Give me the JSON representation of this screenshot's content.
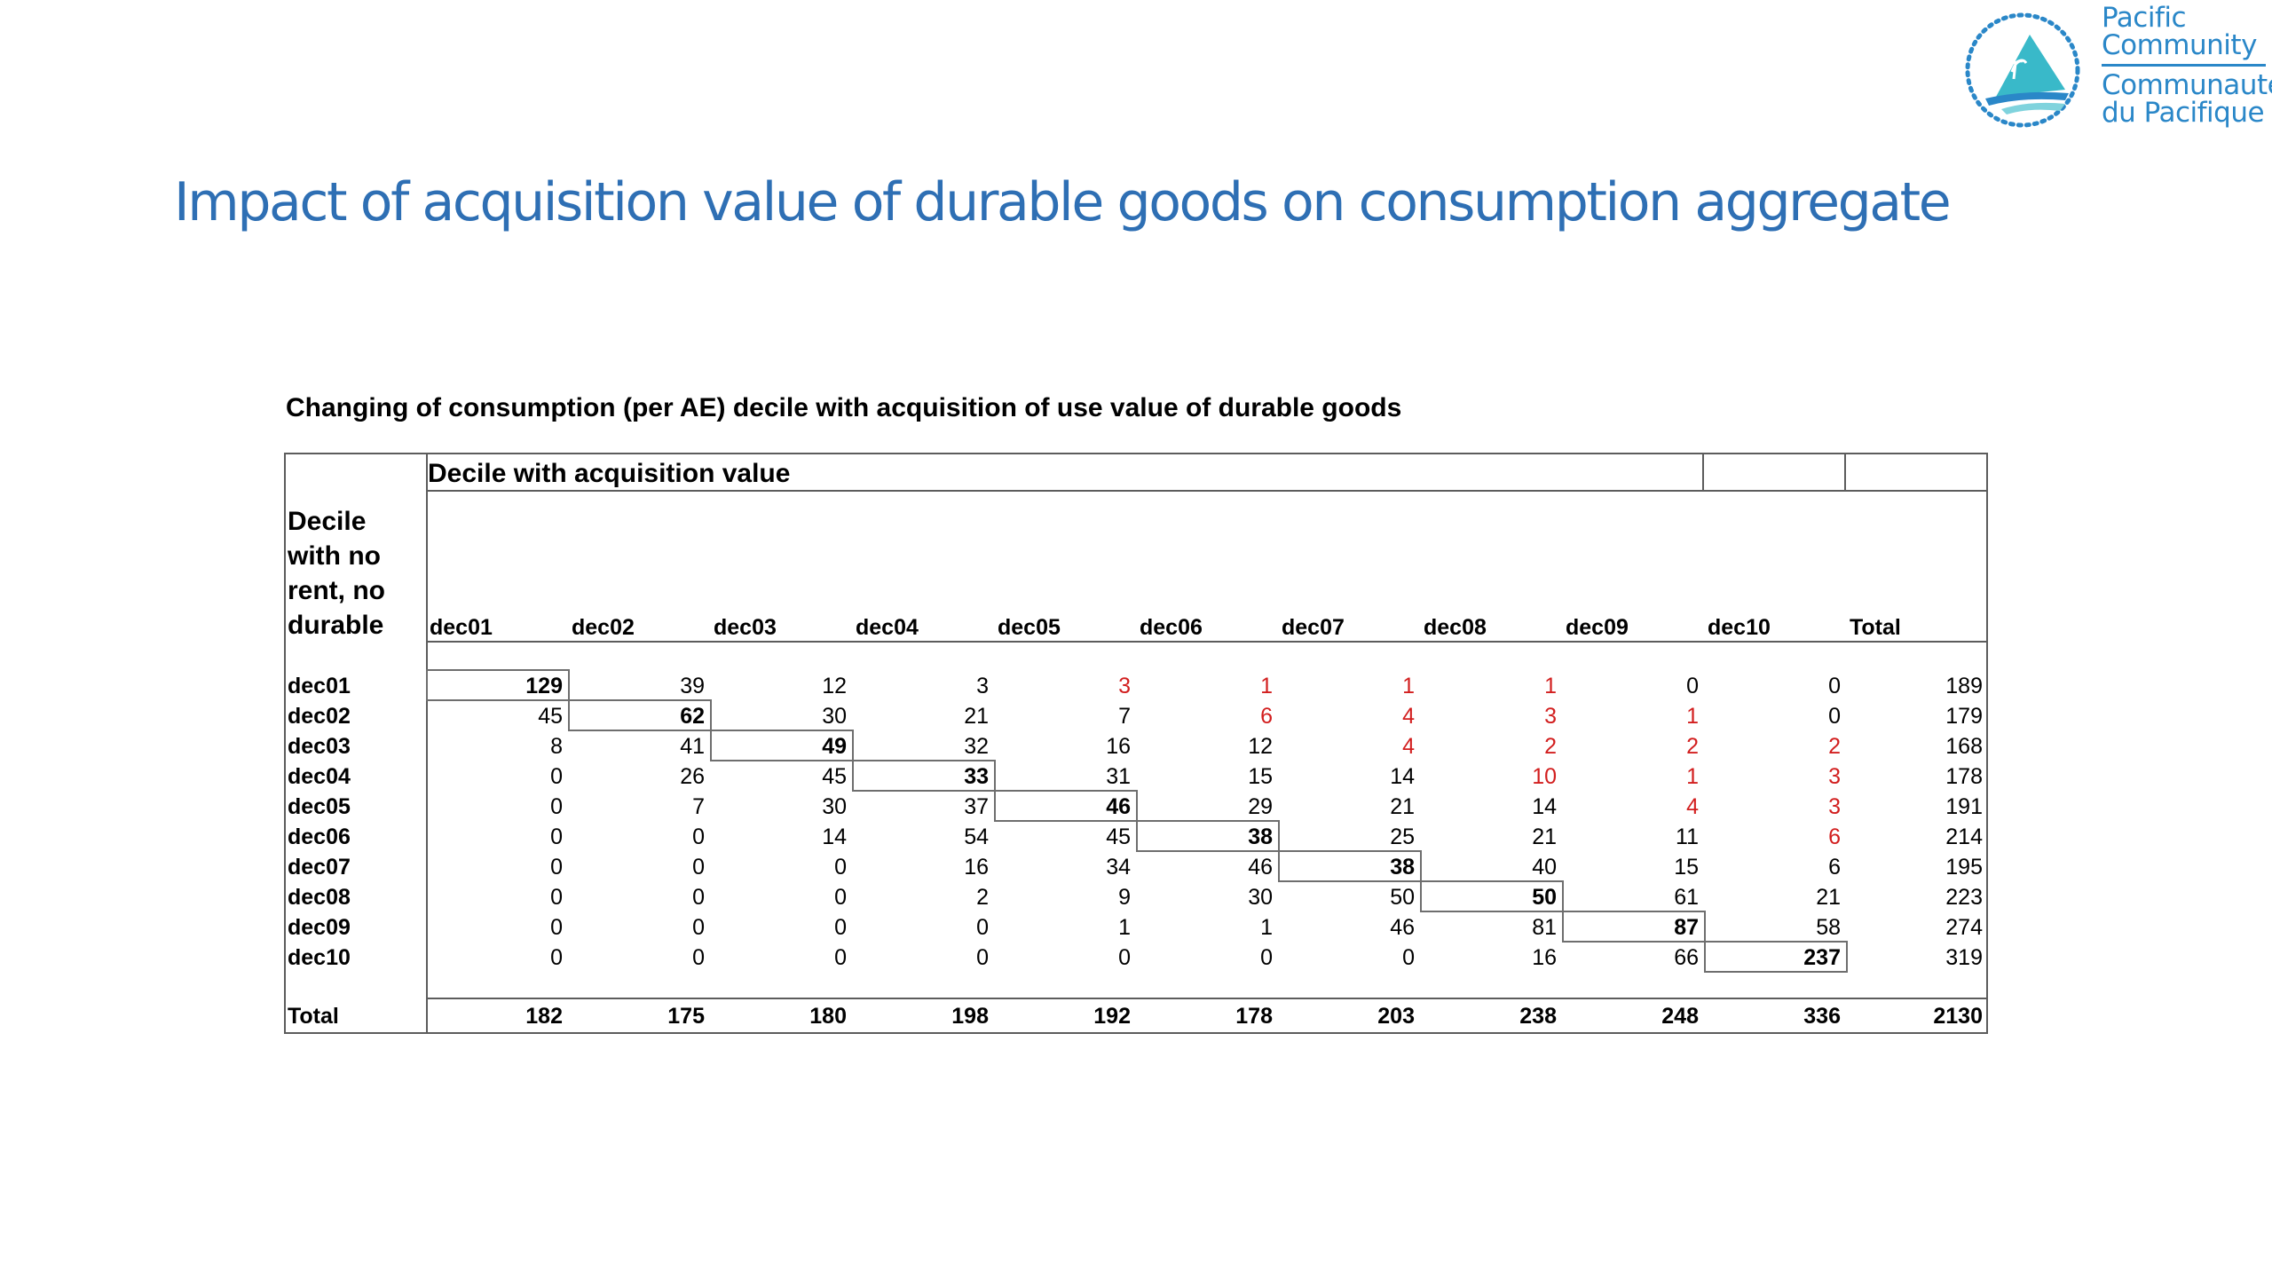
{
  "logo": {
    "line1": "Pacific",
    "line2": "Community",
    "line3": "Communauté",
    "line4": "du Pacifique",
    "brand_color": "#2a87c8"
  },
  "title": "Impact of acquisition value of durable goods on consumption aggregate",
  "title_color": "#2e6fb4",
  "table": {
    "caption": "Changing of consumption (per AE) decile with acquisition of use value of durable goods",
    "group_header": "Decile with acquisition value",
    "row_header": "Decile\nwith no\nrent, no\ndurable",
    "columns": [
      "dec01",
      "dec02",
      "dec03",
      "dec04",
      "dec05",
      "dec06",
      "dec07",
      "dec08",
      "dec09",
      "dec10",
      "Total"
    ],
    "rows": [
      {
        "label": "dec01",
        "values": [
          "129",
          "39",
          "12",
          "3",
          "3",
          "1",
          "1",
          "1",
          "0",
          "0",
          "189"
        ]
      },
      {
        "label": "dec02",
        "values": [
          "45",
          "62",
          "30",
          "21",
          "7",
          "6",
          "4",
          "3",
          "1",
          "0",
          "179"
        ]
      },
      {
        "label": "dec03",
        "values": [
          "8",
          "41",
          "49",
          "32",
          "16",
          "12",
          "4",
          "2",
          "2",
          "2",
          "168"
        ]
      },
      {
        "label": "dec04",
        "values": [
          "0",
          "26",
          "45",
          "33",
          "31",
          "15",
          "14",
          "10",
          "1",
          "3",
          "178"
        ]
      },
      {
        "label": "dec05",
        "values": [
          "0",
          "7",
          "30",
          "37",
          "46",
          "29",
          "21",
          "14",
          "4",
          "3",
          "191"
        ]
      },
      {
        "label": "dec06",
        "values": [
          "0",
          "0",
          "14",
          "54",
          "45",
          "38",
          "25",
          "21",
          "11",
          "6",
          "214"
        ]
      },
      {
        "label": "dec07",
        "values": [
          "0",
          "0",
          "0",
          "16",
          "34",
          "46",
          "38",
          "40",
          "15",
          "6",
          "195"
        ]
      },
      {
        "label": "dec08",
        "values": [
          "0",
          "0",
          "0",
          "2",
          "9",
          "30",
          "50",
          "50",
          "61",
          "21",
          "223"
        ]
      },
      {
        "label": "dec09",
        "values": [
          "0",
          "0",
          "0",
          "0",
          "1",
          "1",
          "46",
          "81",
          "87",
          "58",
          "274"
        ]
      },
      {
        "label": "dec10",
        "values": [
          "0",
          "0",
          "0",
          "0",
          "0",
          "0",
          "0",
          "16",
          "66",
          "237",
          "319"
        ]
      }
    ],
    "total_row": {
      "label": "Total",
      "values": [
        "182",
        "175",
        "180",
        "198",
        "192",
        "178",
        "203",
        "238",
        "248",
        "336",
        "2130"
      ]
    },
    "highlight_color": "#d21e1e",
    "red_cells": [
      [
        0,
        4
      ],
      [
        0,
        5
      ],
      [
        0,
        6
      ],
      [
        0,
        7
      ],
      [
        1,
        5
      ],
      [
        1,
        6
      ],
      [
        1,
        7
      ],
      [
        1,
        8
      ],
      [
        2,
        6
      ],
      [
        2,
        7
      ],
      [
        2,
        8
      ],
      [
        2,
        9
      ],
      [
        3,
        7
      ],
      [
        3,
        8
      ],
      [
        3,
        9
      ],
      [
        4,
        8
      ],
      [
        4,
        9
      ],
      [
        5,
        9
      ]
    ]
  }
}
